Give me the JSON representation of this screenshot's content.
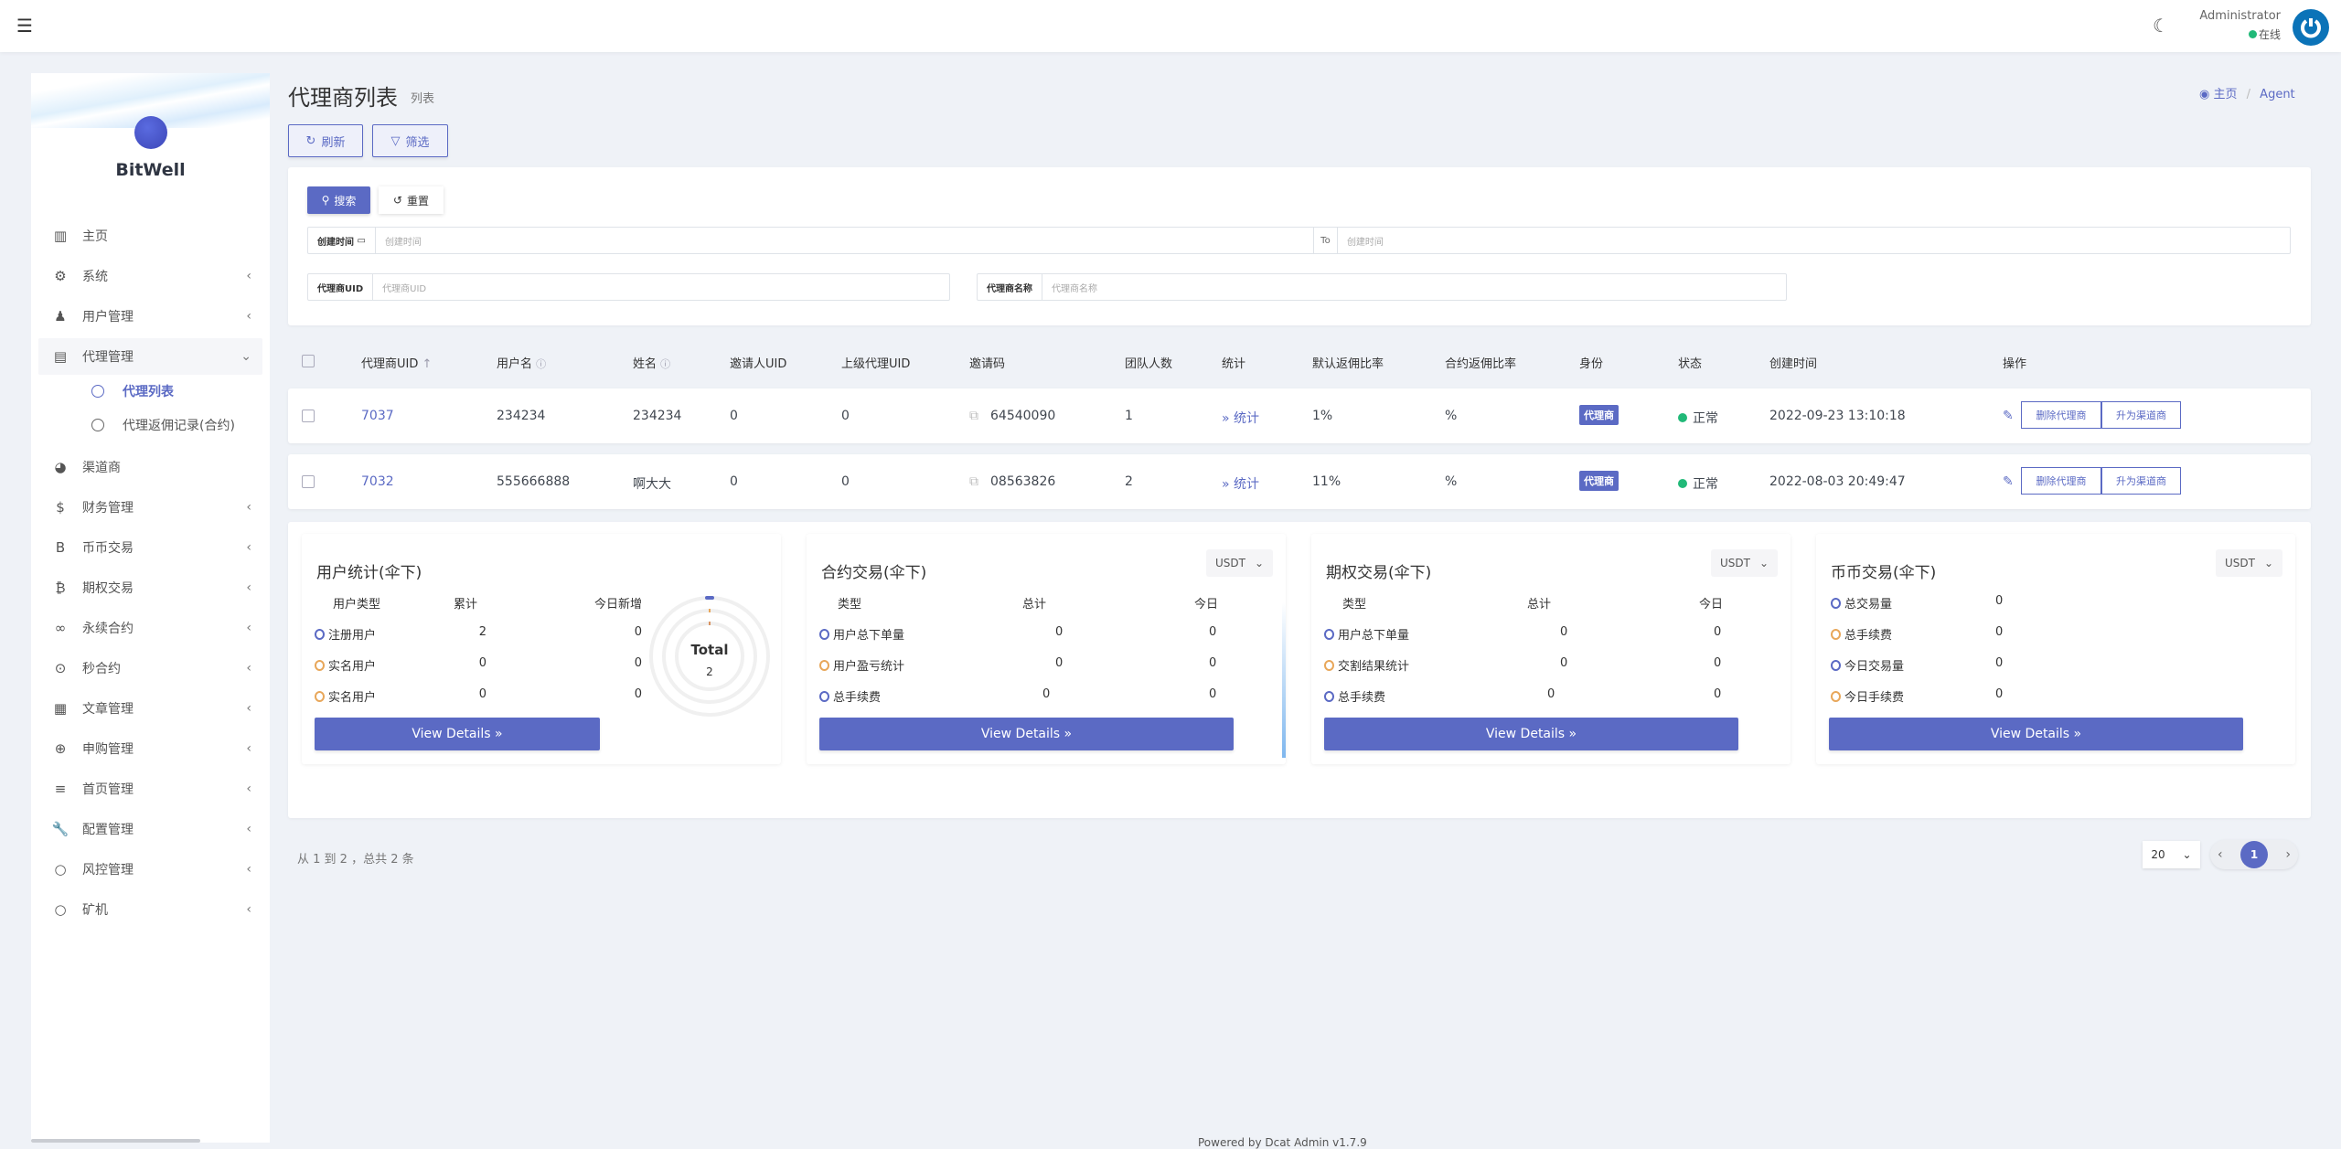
{
  "navbar": {
    "menu_icon": "hamburger-icon",
    "theme_icon": "moon-icon",
    "user_name": "Administrator",
    "status": "在线",
    "status_color": "#21b978",
    "avatar_icon": "power-icon"
  },
  "sidebar": {
    "brand": "BitWell",
    "items": [
      {
        "label": "主页",
        "icon": "bar-chart-icon",
        "chevron": false
      },
      {
        "label": "系统",
        "icon": "gear-icon",
        "chevron": true
      },
      {
        "label": "用户管理",
        "icon": "user-tie-icon",
        "chevron": true
      },
      {
        "label": "代理管理",
        "icon": "id-card-icon",
        "chevron": true,
        "expanded": true,
        "children": [
          {
            "label": "代理列表",
            "active": true
          },
          {
            "label": "代理返佣记录(合约)"
          }
        ]
      },
      {
        "label": "渠道商",
        "icon": "user-circle-icon",
        "chevron": false
      },
      {
        "label": "财务管理",
        "icon": "dollar-icon",
        "chevron": true
      },
      {
        "label": "币币交易",
        "icon": "b-letter-icon",
        "chevron": true
      },
      {
        "label": "期权交易",
        "icon": "bitcoin-icon",
        "chevron": true
      },
      {
        "label": "永续合约",
        "icon": "link-icon",
        "chevron": true
      },
      {
        "label": "秒合约",
        "icon": "dot-circle-icon",
        "chevron": true
      },
      {
        "label": "文章管理",
        "icon": "newspaper-icon",
        "chevron": true
      },
      {
        "label": "申购管理",
        "icon": "life-ring-icon",
        "chevron": true
      },
      {
        "label": "首页管理",
        "icon": "bars-icon",
        "chevron": true
      },
      {
        "label": "配置管理",
        "icon": "wrench-icon",
        "chevron": true
      },
      {
        "label": "风控管理",
        "icon": "circle-icon",
        "chevron": true
      },
      {
        "label": "矿机",
        "icon": "circle-icon",
        "chevron": true
      }
    ]
  },
  "header": {
    "title": "代理商列表",
    "subtitle": "列表",
    "breadcrumb": [
      "主页",
      "Agent"
    ]
  },
  "toolbar": {
    "refresh": "刷新",
    "filter": "筛选"
  },
  "filter": {
    "search": "搜索",
    "reset": "重置",
    "created_label": "创建时间",
    "created_ph": "创建时间",
    "to": "To",
    "created_ph2": "创建时间",
    "uid_label": "代理商UID",
    "uid_ph": "代理商UID",
    "name_label": "代理商名称",
    "name_ph": "代理商名称"
  },
  "table": {
    "columns": [
      "代理商UID",
      "用户名",
      "姓名",
      "邀请人UID",
      "上级代理UID",
      "邀请码",
      "团队人数",
      "统计",
      "默认返佣比率",
      "合约返佣比率",
      "身份",
      "状态",
      "创建时间",
      "操作"
    ],
    "rows": [
      {
        "uid": "7037",
        "username": "234234",
        "name": "234234",
        "inviter": "0",
        "parent": "0",
        "code": "64540090",
        "team": "1",
        "stats": "统计",
        "default_rate": "1%",
        "contract_rate": "%",
        "role": "代理商",
        "status": "正常",
        "created": "2022-09-23 13:10:18",
        "delete": "删除代理商",
        "upgrade": "升为渠道商"
      },
      {
        "uid": "7032",
        "username": "555666888",
        "name": "啊大大",
        "inviter": "0",
        "parent": "0",
        "code": "08563826",
        "team": "2",
        "stats": "统计",
        "default_rate": "11%",
        "contract_rate": "%",
        "role": "代理商",
        "status": "正常",
        "created": "2022-08-03 20:49:47",
        "delete": "删除代理商",
        "upgrade": "升为渠道商"
      }
    ]
  },
  "panels": {
    "users": {
      "title": "用户统计(伞下)",
      "headers": [
        "用户类型",
        "累计",
        "今日新增"
      ],
      "rows": [
        [
          "注册用户",
          "2",
          "0"
        ],
        [
          "实名用户",
          "0",
          "0"
        ],
        [
          "实名用户",
          "0",
          "0"
        ]
      ],
      "donut_label": "Total",
      "donut_value": "2",
      "button": "View Details »"
    },
    "contract": {
      "title": "合约交易(伞下)",
      "currency": "USDT",
      "headers": [
        "类型",
        "总计",
        "今日"
      ],
      "rows": [
        [
          "用户总下单量",
          "0",
          "0"
        ],
        [
          "用户盈亏统计",
          "0",
          "0"
        ],
        [
          "总手续费",
          "0",
          "0"
        ]
      ],
      "button": "View Details »"
    },
    "options": {
      "title": "期权交易(伞下)",
      "currency": "USDT",
      "headers": [
        "类型",
        "总计",
        "今日"
      ],
      "rows": [
        [
          "用户总下单量",
          "0",
          "0"
        ],
        [
          "交割结果统计",
          "0",
          "0"
        ],
        [
          "总手续费",
          "0",
          "0"
        ]
      ],
      "button": "View Details »"
    },
    "spot": {
      "title": "币币交易(伞下)",
      "currency": "USDT",
      "rows": [
        [
          "总交易量",
          "0"
        ],
        [
          "总手续费",
          "0"
        ],
        [
          "今日交易量",
          "0"
        ],
        [
          "今日手续费",
          "0"
        ]
      ],
      "button": "View Details »"
    }
  },
  "pagination": {
    "summary": "从 1 到 2 ，总共 2 条",
    "page_size": "20",
    "current_page": "1"
  },
  "footer": {
    "text": "Powered by Dcat Admin v1.7.9"
  },
  "colors": {
    "primary": "#5b6ac4",
    "background": "#eff2f7",
    "success": "#21b978",
    "warning": "#e8a75a"
  }
}
